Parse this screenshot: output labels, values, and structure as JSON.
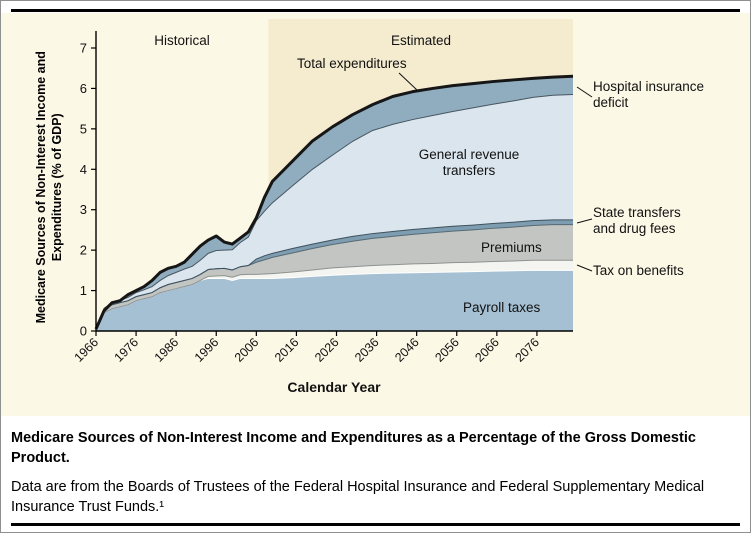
{
  "figure": {
    "caption_bold": "Medicare Sources of Non-Interest Income and Expenditures as a Percentage of the Gross Domestic Product.",
    "caption_source": "Data are from the Boards of Trustees of the Federal Hospital Insurance and Federal Supplementary Medical Insurance Trust Funds.¹"
  },
  "chart_data": {
    "type": "area",
    "stacked": true,
    "title": "",
    "xlabel": "Calendar Year",
    "ylabel": "Medicare Sources of Non-Interest Income and Expenditures (% of GDP)",
    "x_range": [
      1966,
      2085
    ],
    "ylim": [
      0,
      7
    ],
    "y_ticks": [
      0,
      1,
      2,
      3,
      4,
      5,
      6,
      7
    ],
    "x_ticks": [
      1966,
      1976,
      1986,
      1996,
      2006,
      2016,
      2026,
      2036,
      2046,
      2056,
      2066,
      2076
    ],
    "historical_end": 2009,
    "period_labels": {
      "historical": "Historical",
      "estimated": "Estimated"
    },
    "colors": {
      "panel_bg": "#fcf8e6",
      "estimated_bg": "#f5ecd0",
      "axis": "#000000"
    },
    "x": [
      1966,
      1968,
      1970,
      1972,
      1974,
      1976,
      1978,
      1980,
      1982,
      1984,
      1986,
      1988,
      1990,
      1992,
      1994,
      1996,
      1998,
      2000,
      2002,
      2004,
      2006,
      2008,
      2010,
      2015,
      2020,
      2025,
      2030,
      2035,
      2040,
      2045,
      2050,
      2055,
      2060,
      2065,
      2070,
      2075,
      2080,
      2085
    ],
    "series": [
      {
        "name": "Payroll taxes",
        "color": "#a4c0d2",
        "edge": "#ffffff",
        "values": [
          0.05,
          0.45,
          0.55,
          0.6,
          0.65,
          0.75,
          0.8,
          0.85,
          0.95,
          1.0,
          1.05,
          1.1,
          1.15,
          1.25,
          1.3,
          1.3,
          1.3,
          1.25,
          1.3,
          1.3,
          1.3,
          1.3,
          1.3,
          1.32,
          1.35,
          1.38,
          1.4,
          1.42,
          1.43,
          1.44,
          1.45,
          1.46,
          1.47,
          1.48,
          1.49,
          1.5,
          1.5,
          1.5
        ]
      },
      {
        "name": "Tax on benefits",
        "color": "#f4f5f1",
        "edge": "#8d9290",
        "values": [
          0,
          0,
          0,
          0,
          0,
          0,
          0,
          0,
          0,
          0,
          0,
          0,
          0,
          0,
          0.05,
          0.06,
          0.07,
          0.08,
          0.09,
          0.1,
          0.1,
          0.11,
          0.12,
          0.14,
          0.16,
          0.18,
          0.19,
          0.2,
          0.21,
          0.22,
          0.22,
          0.23,
          0.23,
          0.24,
          0.24,
          0.25,
          0.25,
          0.25
        ]
      },
      {
        "name": "Premiums",
        "color": "#c2c5c1",
        "edge": "#566a76",
        "values": [
          0.0,
          0.08,
          0.1,
          0.1,
          0.1,
          0.1,
          0.1,
          0.1,
          0.12,
          0.15,
          0.15,
          0.15,
          0.15,
          0.15,
          0.17,
          0.18,
          0.18,
          0.18,
          0.2,
          0.22,
          0.3,
          0.35,
          0.4,
          0.47,
          0.53,
          0.58,
          0.63,
          0.67,
          0.7,
          0.73,
          0.76,
          0.78,
          0.8,
          0.82,
          0.84,
          0.86,
          0.88,
          0.88
        ]
      },
      {
        "name": "State transfers and drug fees",
        "color": "#7e9db0",
        "edge": "#3e525e",
        "values": [
          0,
          0,
          0,
          0,
          0,
          0,
          0,
          0,
          0,
          0,
          0,
          0,
          0,
          0,
          0,
          0,
          0,
          0,
          0,
          0,
          0.08,
          0.1,
          0.1,
          0.11,
          0.11,
          0.11,
          0.12,
          0.12,
          0.12,
          0.12,
          0.12,
          0.12,
          0.12,
          0.12,
          0.12,
          0.12,
          0.12,
          0.12
        ]
      },
      {
        "name": "General revenue transfers",
        "color": "#dbe5ee",
        "edge": "#47565f",
        "values": [
          0.0,
          0.03,
          0.05,
          0.06,
          0.08,
          0.1,
          0.12,
          0.15,
          0.18,
          0.22,
          0.25,
          0.28,
          0.3,
          0.35,
          0.4,
          0.45,
          0.45,
          0.5,
          0.6,
          0.7,
          0.95,
          1.1,
          1.25,
          1.55,
          1.85,
          2.1,
          2.35,
          2.55,
          2.65,
          2.72,
          2.78,
          2.84,
          2.9,
          2.95,
          3.0,
          3.05,
          3.08,
          3.1
        ]
      }
    ],
    "deficit": {
      "name": "Hospital insurance deficit",
      "color": "#8fadbf"
    },
    "total_series": {
      "name": "Total expenditures",
      "color": "#161616",
      "values": [
        0.05,
        0.5,
        0.7,
        0.75,
        0.9,
        1.0,
        1.1,
        1.25,
        1.45,
        1.55,
        1.6,
        1.7,
        1.9,
        2.1,
        2.25,
        2.35,
        2.2,
        2.15,
        2.3,
        2.45,
        2.8,
        3.3,
        3.7,
        4.2,
        4.7,
        5.05,
        5.35,
        5.6,
        5.8,
        5.92,
        6.0,
        6.07,
        6.12,
        6.17,
        6.21,
        6.25,
        6.28,
        6.3
      ]
    }
  }
}
